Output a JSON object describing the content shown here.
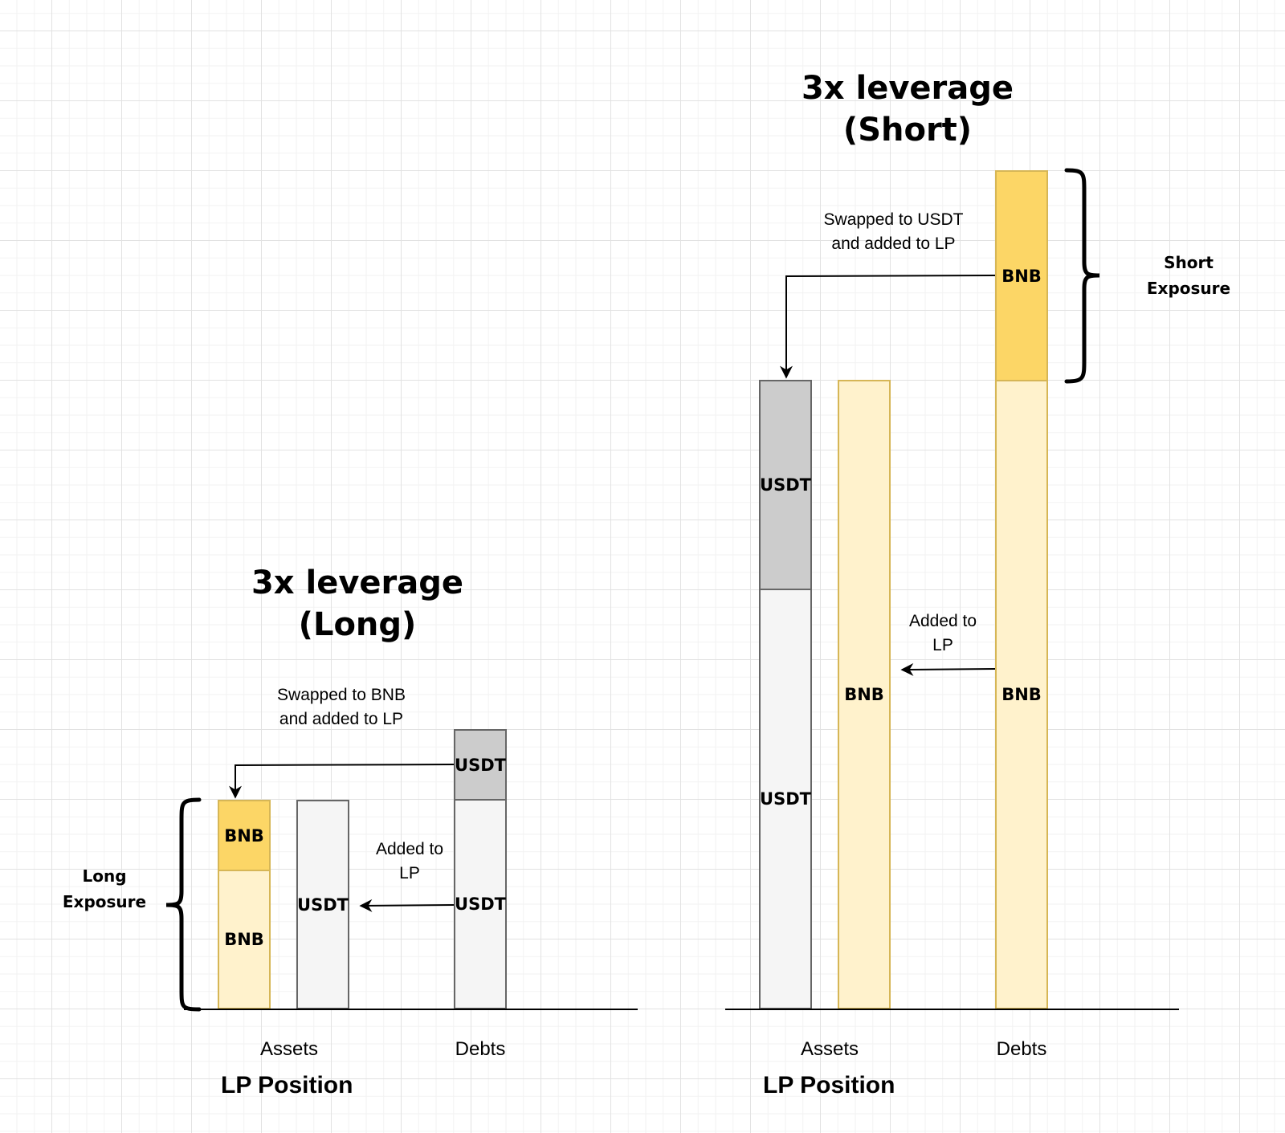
{
  "long": {
    "title_line1": "3x leverage",
    "title_line2": "(Long)",
    "swap_note_line1": "Swapped to BNB",
    "swap_note_line2": "and added to LP",
    "added_note_line1": "Added to",
    "added_note_line2": "LP",
    "exposure_line1": "Long",
    "exposure_line2": "Exposure",
    "assets_label": "Assets",
    "debts_label": "Debts",
    "lp_label": "LP Position",
    "bar_labels": {
      "bnb_top": "BNB",
      "bnb_bottom": "BNB",
      "usdt_asset": "USDT",
      "usdt_debt_top": "USDT",
      "usdt_debt_bottom": "USDT"
    }
  },
  "short": {
    "title_line1": "3x leverage",
    "title_line2": "(Short)",
    "swap_note_line1": "Swapped to USDT",
    "swap_note_line2": "and added to LP",
    "added_note_line1": "Added to",
    "added_note_line2": "LP",
    "exposure_line1": "Short",
    "exposure_line2": "Exposure",
    "assets_label": "Assets",
    "debts_label": "Debts",
    "lp_label": "LP Position",
    "bar_labels": {
      "usdt_top": "USDT",
      "usdt_bottom": "USDT",
      "bnb_asset": "BNB",
      "bnb_debt_top": "BNB",
      "bnb_debt_bottom": "BNB"
    }
  },
  "colors": {
    "bnb_dark": "#fcd666",
    "bnb_light": "#fff2cc",
    "usdt_dark": "#cccccc",
    "usdt_light": "#f5f5f5"
  }
}
